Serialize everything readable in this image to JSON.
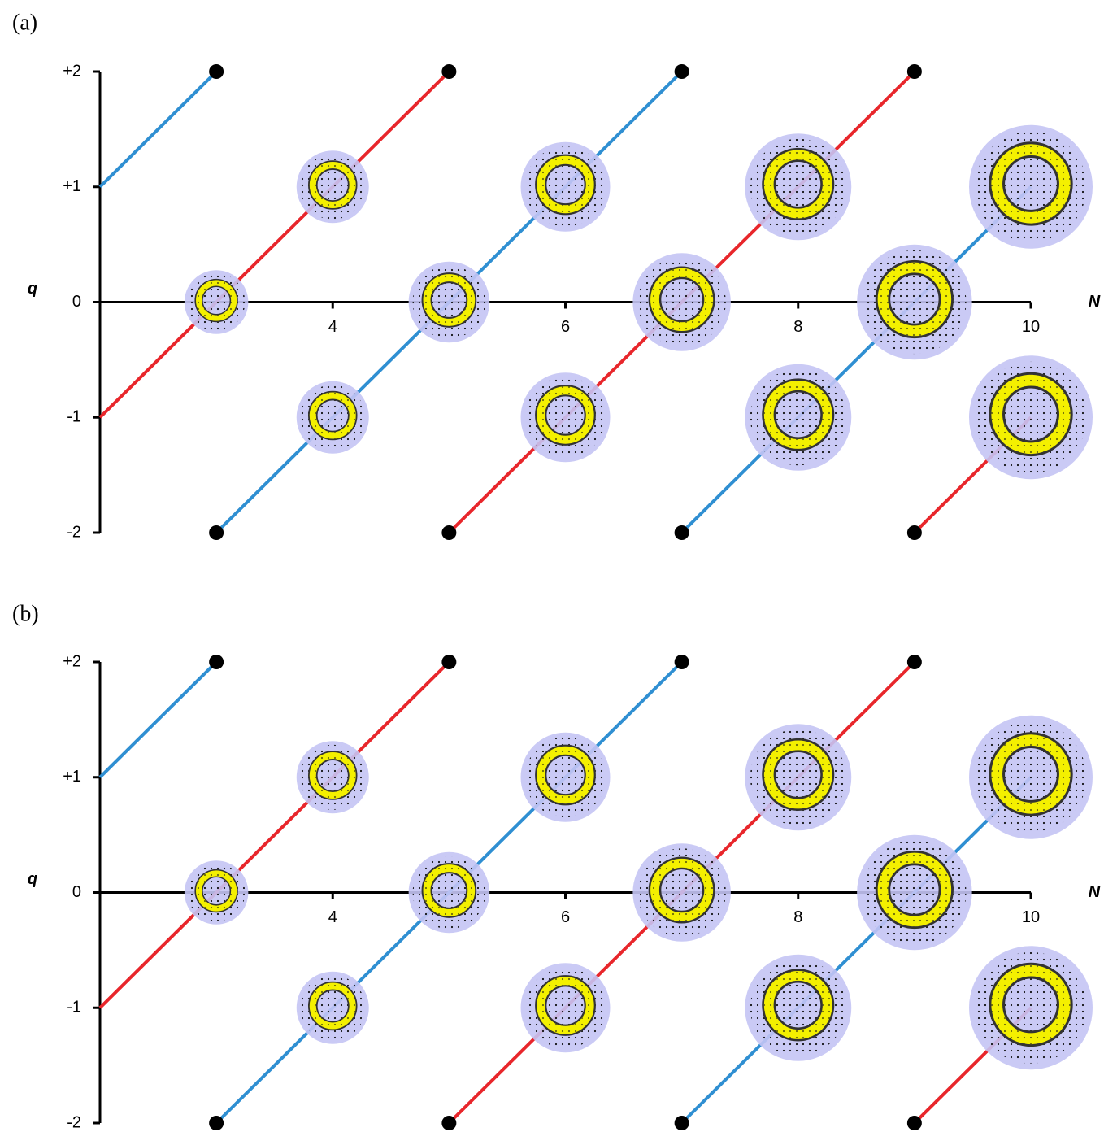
{
  "chart_data": [
    {
      "type": "line",
      "title": "(a)",
      "xlabel": "N",
      "ylabel": "q",
      "xlim": [
        2,
        10
      ],
      "ylim": [
        -2,
        2
      ],
      "xticks": [
        4,
        6,
        8,
        10
      ],
      "yticks": [
        {
          "value": 2,
          "label": "+2"
        },
        {
          "value": 1,
          "label": "+1"
        },
        0,
        -1,
        -2
      ],
      "series": [
        {
          "color": "#2f8fd2",
          "x": [
            2,
            3
          ],
          "values": [
            1,
            2
          ]
        },
        {
          "color": "#e8262b",
          "x": [
            2,
            3,
            4,
            5
          ],
          "values": [
            -1,
            0,
            1,
            2
          ]
        },
        {
          "color": "#2f8fd2",
          "x": [
            3,
            4,
            5,
            6,
            7
          ],
          "values": [
            -2,
            -1,
            0,
            1,
            2
          ]
        },
        {
          "color": "#e8262b",
          "x": [
            5,
            6,
            7,
            8,
            9
          ],
          "values": [
            -2,
            -1,
            0,
            1,
            2
          ]
        },
        {
          "color": "#2f8fd2",
          "x": [
            7,
            8,
            9,
            10
          ],
          "values": [
            -2,
            -1,
            0,
            1
          ]
        },
        {
          "color": "#e8262b",
          "x": [
            9,
            10
          ],
          "values": [
            -2,
            -1
          ]
        }
      ]
    },
    {
      "type": "line",
      "title": "(b)",
      "xlabel": "N",
      "ylabel": "q",
      "xlim": [
        2,
        10
      ],
      "ylim": [
        -2,
        2
      ],
      "xticks": [
        4,
        6,
        8,
        10
      ],
      "yticks": [
        {
          "value": 2,
          "label": "+2"
        },
        {
          "value": 1,
          "label": "+1"
        },
        0,
        -1,
        -2
      ],
      "series": [
        {
          "color": "#2f8fd2",
          "x": [
            2,
            3
          ],
          "values": [
            1,
            2
          ]
        },
        {
          "color": "#e8262b",
          "x": [
            2,
            3,
            4,
            5
          ],
          "values": [
            -1,
            0,
            1,
            2
          ]
        },
        {
          "color": "#2f8fd2",
          "x": [
            3,
            4,
            5,
            6,
            7
          ],
          "values": [
            -2,
            -1,
            0,
            1,
            2
          ]
        },
        {
          "color": "#e8262b",
          "x": [
            5,
            6,
            7,
            8,
            9
          ],
          "values": [
            -2,
            -1,
            0,
            1,
            2
          ]
        },
        {
          "color": "#2f8fd2",
          "x": [
            7,
            8,
            9,
            10
          ],
          "values": [
            -2,
            -1,
            0,
            1
          ]
        },
        {
          "color": "#e8262b",
          "x": [
            9,
            10
          ],
          "values": [
            -2,
            -1
          ]
        }
      ]
    }
  ]
}
